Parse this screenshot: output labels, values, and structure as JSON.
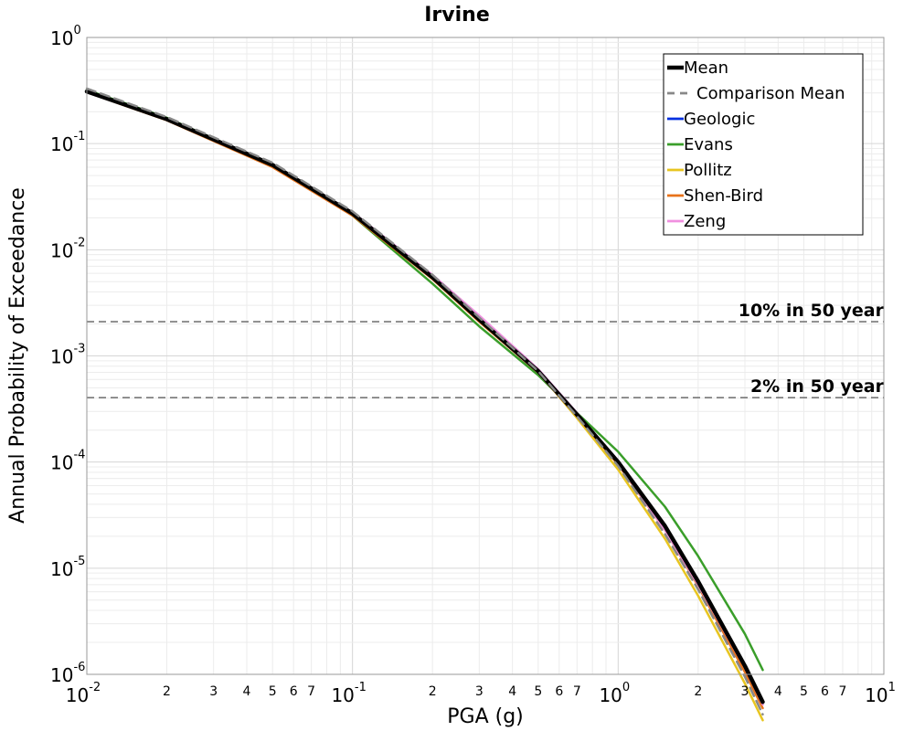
{
  "chart_data": {
    "type": "line",
    "title": "Irvine",
    "xlabel": "PGA (g)",
    "ylabel": "Annual Probability of Exceedance",
    "xscale": "log",
    "yscale": "log",
    "xlim": [
      0.01,
      10
    ],
    "ylim": [
      1e-06,
      1
    ],
    "grid": true,
    "legend_position": "top-right",
    "x_major_ticks": [
      {
        "value": 0.01,
        "base": "10",
        "exp": "-2"
      },
      {
        "value": 0.1,
        "base": "10",
        "exp": "-1"
      },
      {
        "value": 1,
        "base": "10",
        "exp": "0"
      },
      {
        "value": 10,
        "base": "10",
        "exp": "1"
      }
    ],
    "y_major_ticks": [
      {
        "value": 1,
        "base": "10",
        "exp": "0"
      },
      {
        "value": 0.1,
        "base": "10",
        "exp": "-1"
      },
      {
        "value": 0.01,
        "base": "10",
        "exp": "-2"
      },
      {
        "value": 0.001,
        "base": "10",
        "exp": "-3"
      },
      {
        "value": 0.0001,
        "base": "10",
        "exp": "-4"
      },
      {
        "value": 1e-05,
        "base": "10",
        "exp": "-5"
      },
      {
        "value": 1e-06,
        "base": "10",
        "exp": "-6"
      }
    ],
    "x_minor_tick_labels": [
      "2",
      "3",
      "4",
      "5",
      "6",
      "7"
    ],
    "reference_lines": [
      {
        "label": "10% in 50 year",
        "y": 0.0021
      },
      {
        "label": "2% in 50 year",
        "y": 0.000404
      }
    ],
    "x": [
      0.01,
      0.02,
      0.05,
      0.1,
      0.2,
      0.3,
      0.5,
      0.7,
      1.0,
      1.5,
      2.0,
      3.0,
      3.5
    ],
    "series": [
      {
        "name": "Mean",
        "color": "#000000",
        "style": "solid",
        "width": 4.5,
        "values": [
          0.31,
          0.17,
          0.063,
          0.022,
          0.0055,
          0.0022,
          0.00072,
          0.00028,
          0.0001,
          2.5e-05,
          7.5e-06,
          1.2e-06,
          5.5e-07
        ]
      },
      {
        "name": "Comparison Mean",
        "color": "#888888",
        "style": "dashed",
        "width": 2.5,
        "values": [
          0.33,
          0.178,
          0.066,
          0.023,
          0.0058,
          0.0023,
          0.00072,
          0.00027,
          9.2e-05,
          2.1e-05,
          6.3e-06,
          9.5e-07,
          4.2e-07
        ]
      },
      {
        "name": "Geologic",
        "color": "#0030e0",
        "style": "solid",
        "width": 2.5,
        "values": [
          0.31,
          0.17,
          0.063,
          0.022,
          0.0055,
          0.0022,
          0.00072,
          0.00028,
          0.0001,
          2.5e-05,
          7.5e-06,
          1.2e-06,
          5.5e-07
        ]
      },
      {
        "name": "Evans",
        "color": "#3a9e2a",
        "style": "solid",
        "width": 2.5,
        "values": [
          0.32,
          0.175,
          0.063,
          0.021,
          0.0048,
          0.0019,
          0.00066,
          0.00029,
          0.000125,
          3.8e-05,
          1.3e-05,
          2.4e-06,
          1.1e-06
        ]
      },
      {
        "name": "Pollitz",
        "color": "#e8c520",
        "style": "solid",
        "width": 2.5,
        "values": [
          0.31,
          0.168,
          0.061,
          0.0215,
          0.0055,
          0.0022,
          0.00071,
          0.00026,
          8.5e-05,
          1.9e-05,
          5.5e-06,
          8.2e-07,
          3.7e-07
        ]
      },
      {
        "name": "Shen-Bird",
        "color": "#e8731a",
        "style": "solid",
        "width": 2.5,
        "values": [
          0.305,
          0.166,
          0.06,
          0.021,
          0.0053,
          0.0021,
          0.0007,
          0.00027,
          9.5e-05,
          2.3e-05,
          6.8e-06,
          1.05e-06,
          4.8e-07
        ]
      },
      {
        "name": "Zeng",
        "color": "#f090e0",
        "style": "solid",
        "width": 2.5,
        "values": [
          0.31,
          0.17,
          0.064,
          0.0225,
          0.0058,
          0.0024,
          0.00075,
          0.00029,
          9.7e-05,
          2.3e-05,
          7e-06,
          1.15e-06,
          5.2e-07
        ]
      }
    ]
  }
}
